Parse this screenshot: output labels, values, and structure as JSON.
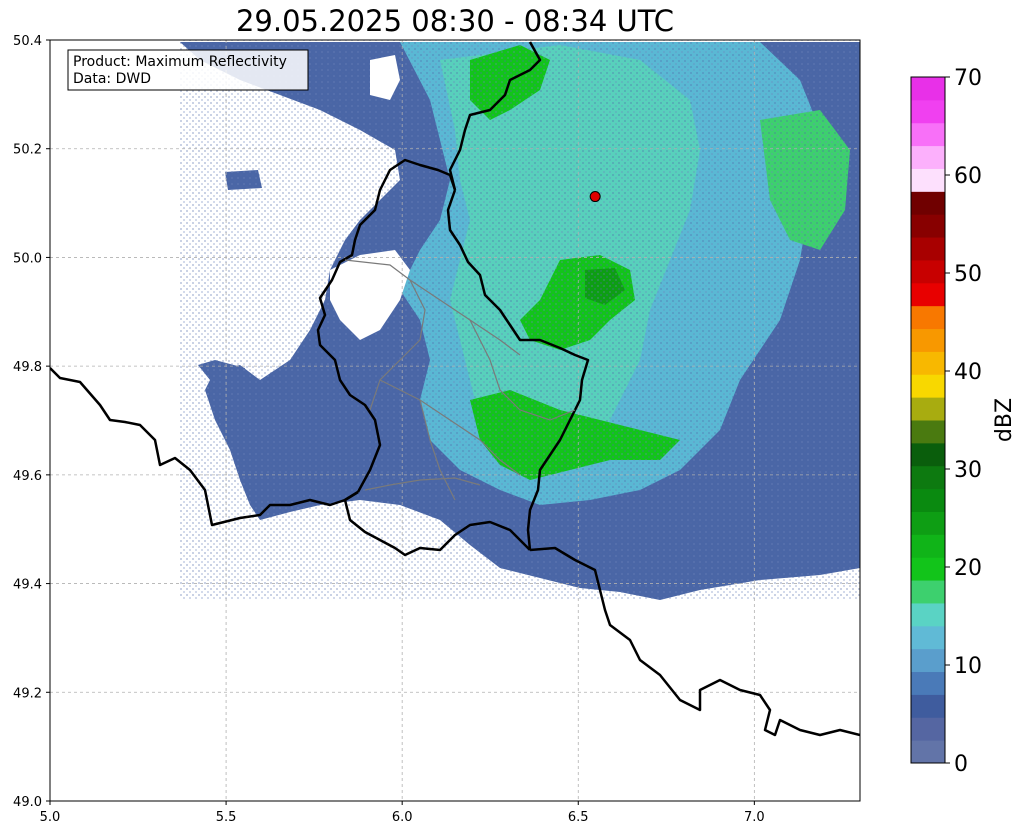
{
  "title": "29.05.2025 08:30 - 08:34 UTC",
  "info_box": {
    "product_line": "Product: Maximum Reflectivity",
    "data_line": "Data: DWD"
  },
  "chart_data": {
    "type": "heatmap",
    "title": "29.05.2025 08:30 - 08:34 UTC",
    "xlabel": "",
    "ylabel": "",
    "xlim": [
      5.0,
      7.3
    ],
    "ylim": [
      49.0,
      50.4
    ],
    "x_ticks": [
      5.0,
      5.5,
      6.0,
      6.5,
      7.0
    ],
    "x_tick_labels": [
      "5.0",
      "5.5",
      "6.0",
      "6.5",
      "7.0"
    ],
    "y_ticks": [
      49.0,
      49.2,
      49.4,
      49.6,
      49.8,
      50.0,
      50.2,
      50.4
    ],
    "y_tick_labels": [
      "49.0",
      "49.2",
      "49.4",
      "49.6",
      "49.8",
      "50.0",
      "50.2",
      "50.4"
    ],
    "grid": true,
    "radar_site": {
      "lon": 6.548,
      "lat": 50.112
    },
    "colorbar": {
      "label": "dBZ",
      "min": 0,
      "max": 70,
      "ticks": [
        0,
        10,
        20,
        30,
        40,
        50,
        60,
        70
      ],
      "tick_labels": [
        "0",
        "10",
        "20",
        "30",
        "40",
        "50",
        "60",
        "70"
      ],
      "colors": [
        "#6274a8",
        "#5566a2",
        "#3f5c9e",
        "#4a7ab8",
        "#5a9ecc",
        "#60bad6",
        "#5ad3c4",
        "#3dd06e",
        "#12c41a",
        "#10b418",
        "#0e9e14",
        "#0a8a10",
        "#0d7a10",
        "#0a5e0c",
        "#4a7a10",
        "#a8ac10",
        "#f8d800",
        "#f8b800",
        "#f89800",
        "#f87800",
        "#e80000",
        "#c80000",
        "#a80000",
        "#880000",
        "#700000",
        "#fde0fd",
        "#fcb0fc",
        "#f870f8",
        "#f040f0",
        "#e830e8"
      ]
    }
  }
}
